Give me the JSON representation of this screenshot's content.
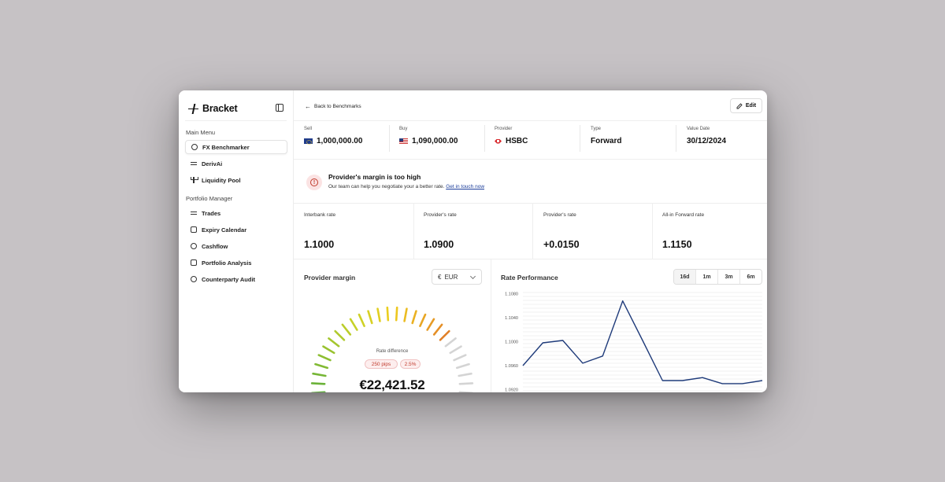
{
  "brand": {
    "name": "Bracket"
  },
  "sidebar": {
    "main_menu_title": "Main Menu",
    "main_items": [
      {
        "label": "FX Benchmarker",
        "icon": "gauge-icon"
      },
      {
        "label": "DerivAi",
        "icon": "swap-icon"
      },
      {
        "label": "Liquidity Pool",
        "icon": "fork-icon"
      }
    ],
    "portfolio_title": "Portfolio Manager",
    "portfolio_items": [
      {
        "label": "Trades",
        "icon": "arrows-icon"
      },
      {
        "label": "Expiry Calendar",
        "icon": "calendar-icon"
      },
      {
        "label": "Cashflow",
        "icon": "dollar-icon"
      },
      {
        "label": "Portfolio Analysis",
        "icon": "chart-icon"
      },
      {
        "label": "Counterparty Audit",
        "icon": "pie-icon"
      }
    ]
  },
  "header": {
    "back_label": "Back to Benchmarks",
    "edit_label": "Edit"
  },
  "info": [
    {
      "label": "Sell",
      "value": "1,000,000.00",
      "icon": "eu-flag-icon"
    },
    {
      "label": "Buy",
      "value": "1,090,000.00",
      "icon": "us-flag-icon"
    },
    {
      "label": "Provider",
      "value": "HSBC",
      "icon": "hsbc-logo-icon"
    },
    {
      "label": "Type",
      "value": "Forward"
    },
    {
      "label": "Value Date",
      "value": "30/12/2024"
    }
  ],
  "alert": {
    "title": "Provider's margin is too high",
    "text": "Our team can help you negotiate your a better rate.",
    "link": "Get in touch now"
  },
  "rates": [
    {
      "label": "Interbank rate",
      "value": "1.1000"
    },
    {
      "label": "Provider's rate",
      "value": "1.0900"
    },
    {
      "label": "Provider's rate",
      "value": "+0.0150"
    },
    {
      "label": "All-in Forward rate",
      "value": "1.1150"
    }
  ],
  "provider_margin": {
    "title": "Provider margin",
    "currency_symbol": "€",
    "currency": "EUR",
    "rate_diff_label": "Rate difference",
    "pips": "250 pips",
    "percent": "2.5%",
    "amount": "€22,421.52",
    "gauge_level": 0.75
  },
  "rate_performance": {
    "title": "Rate Performance",
    "ranges": [
      "16d",
      "1m",
      "3m",
      "6m"
    ],
    "active_range": "16d"
  },
  "chart_data": {
    "type": "line",
    "title": "Rate Performance",
    "y_ticks": [
      "1.1080",
      "1.1040",
      "1.1000",
      "1.0960",
      "1.0920"
    ],
    "ylim": [
      1.092,
      1.108
    ],
    "x": [
      1,
      2,
      3,
      4,
      5,
      6,
      7,
      8,
      9,
      10,
      11,
      12,
      13
    ],
    "series": [
      {
        "values": [
          1.096,
          1.0998,
          1.1002,
          1.0964,
          1.0976,
          1.1068,
          1.1002,
          1.0935,
          1.0935,
          1.094,
          1.093,
          1.093,
          1.0935
        ]
      }
    ],
    "grid": true,
    "line_color": "#1f3b7a"
  }
}
